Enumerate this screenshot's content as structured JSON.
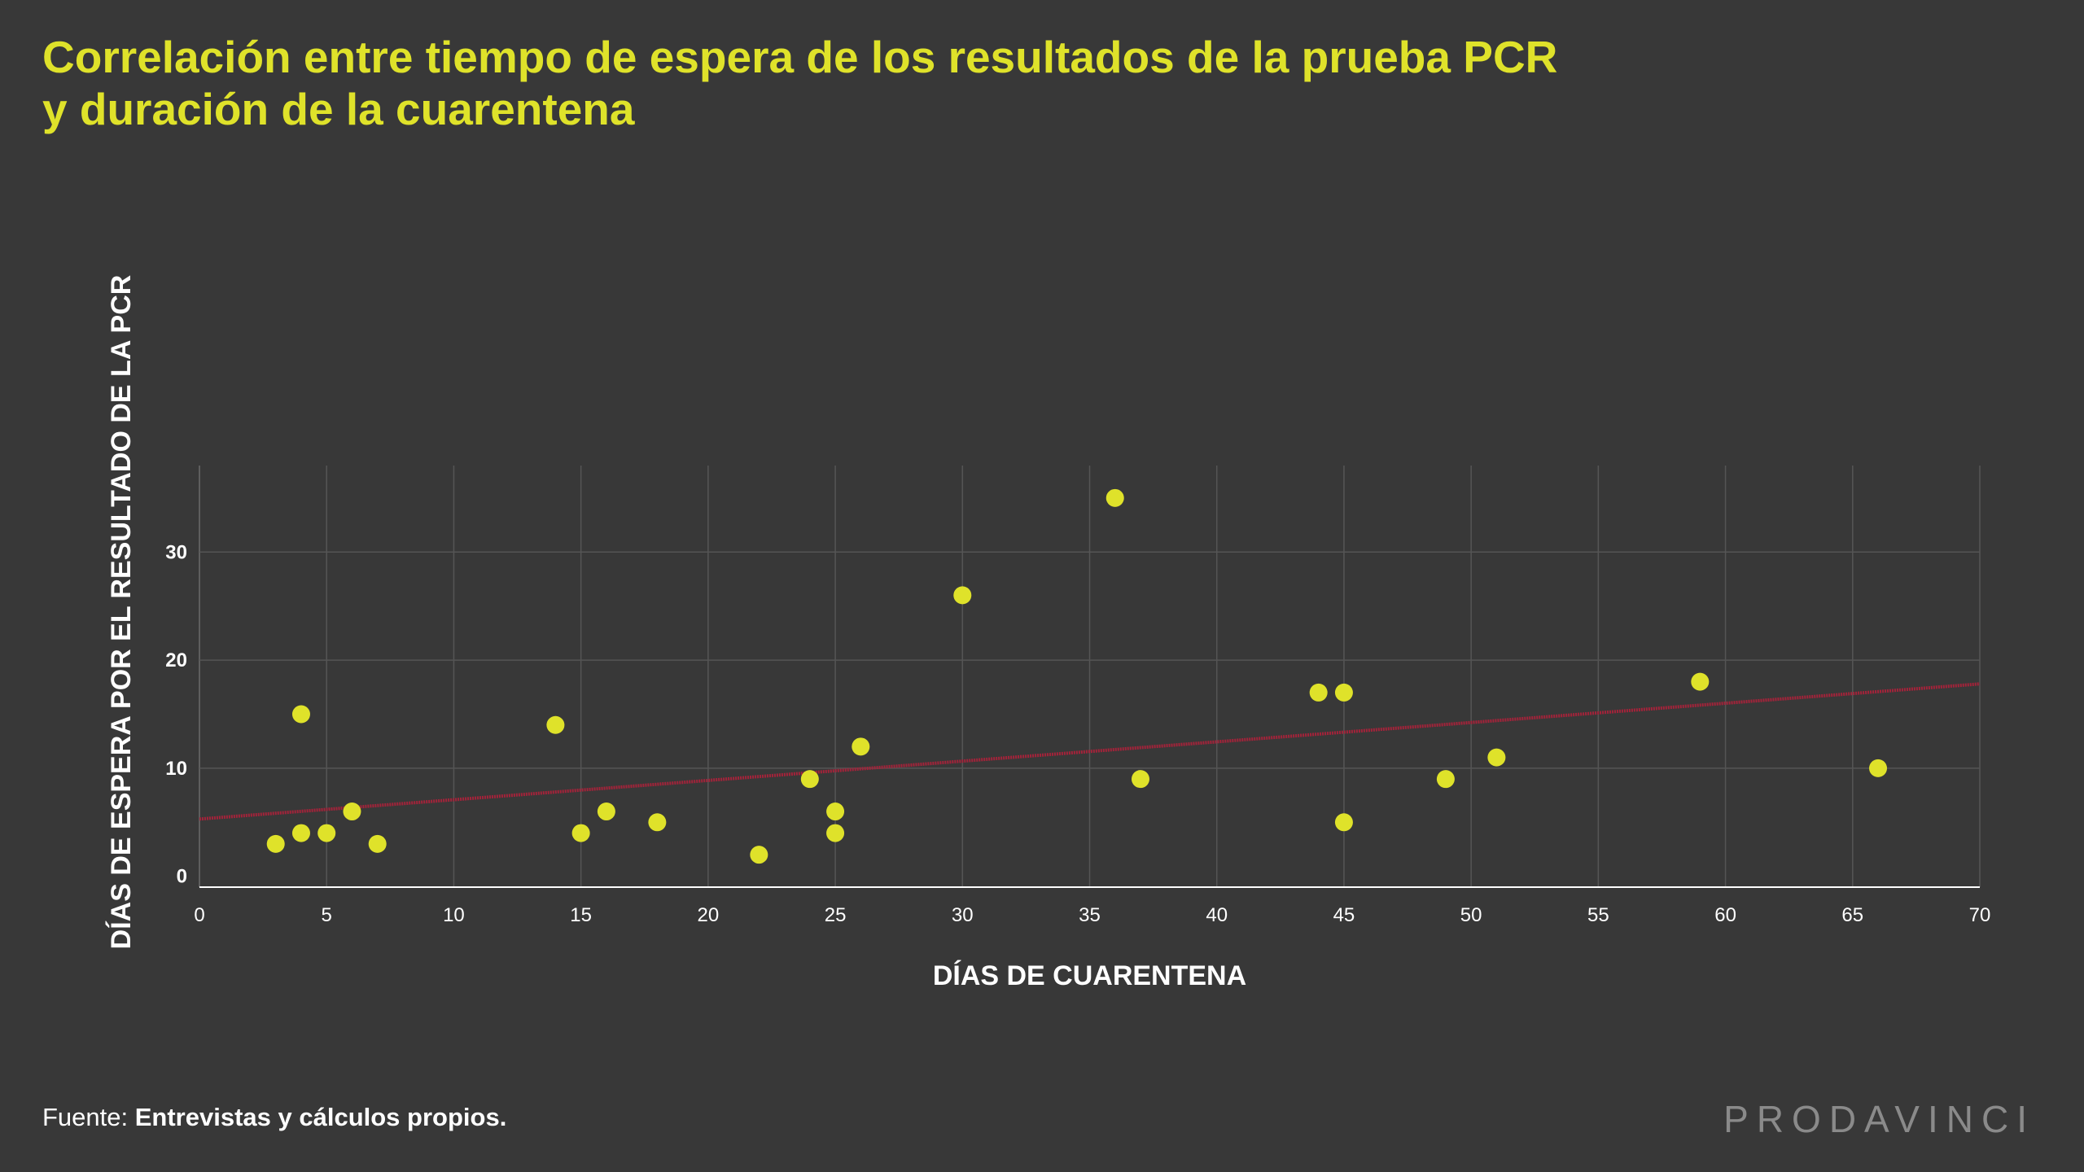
{
  "title": {
    "line1": "Correlación entre tiempo de espera de los resultados de la prueba PCR",
    "line2": "y duración de la cuarentena"
  },
  "source": {
    "label": "Fuente:",
    "text": "Entrevistas y cálculos propios."
  },
  "brand": "PRODAVINCI",
  "colors": {
    "background": "#383838",
    "title": "#dfe22a",
    "points": "#dfe22a",
    "trendline": "#a3233a",
    "grid": "#555555",
    "text": "#ffffff"
  },
  "chart_data": {
    "type": "scatter",
    "xlabel": "DÍAS DE CUARENTENA",
    "ylabel": "DÍAS DE ESPERA POR EL RESULTADO DE LA PCR",
    "xlim": [
      0,
      70
    ],
    "ylim": [
      -1,
      38
    ],
    "xticks": [
      0,
      5,
      10,
      15,
      20,
      25,
      30,
      35,
      40,
      45,
      50,
      55,
      60,
      65,
      70
    ],
    "yticks": [
      0,
      10,
      20,
      30
    ],
    "grid": true,
    "points": [
      {
        "x": 3,
        "y": 3
      },
      {
        "x": 4,
        "y": 4
      },
      {
        "x": 4,
        "y": 15
      },
      {
        "x": 5,
        "y": 4
      },
      {
        "x": 6,
        "y": 6
      },
      {
        "x": 7,
        "y": 3
      },
      {
        "x": 14,
        "y": 14
      },
      {
        "x": 15,
        "y": 4
      },
      {
        "x": 16,
        "y": 6
      },
      {
        "x": 18,
        "y": 5
      },
      {
        "x": 22,
        "y": 2
      },
      {
        "x": 24,
        "y": 9
      },
      {
        "x": 25,
        "y": 6
      },
      {
        "x": 25,
        "y": 4
      },
      {
        "x": 26,
        "y": 12
      },
      {
        "x": 30,
        "y": 26
      },
      {
        "x": 36,
        "y": 35
      },
      {
        "x": 37,
        "y": 9
      },
      {
        "x": 44,
        "y": 17
      },
      {
        "x": 45,
        "y": 17
      },
      {
        "x": 45,
        "y": 5
      },
      {
        "x": 49,
        "y": 9
      },
      {
        "x": 51,
        "y": 11
      },
      {
        "x": 59,
        "y": 18
      },
      {
        "x": 66,
        "y": 10
      }
    ],
    "trendline": {
      "x": [
        0,
        70
      ],
      "y": [
        5.3,
        17.8
      ]
    }
  }
}
